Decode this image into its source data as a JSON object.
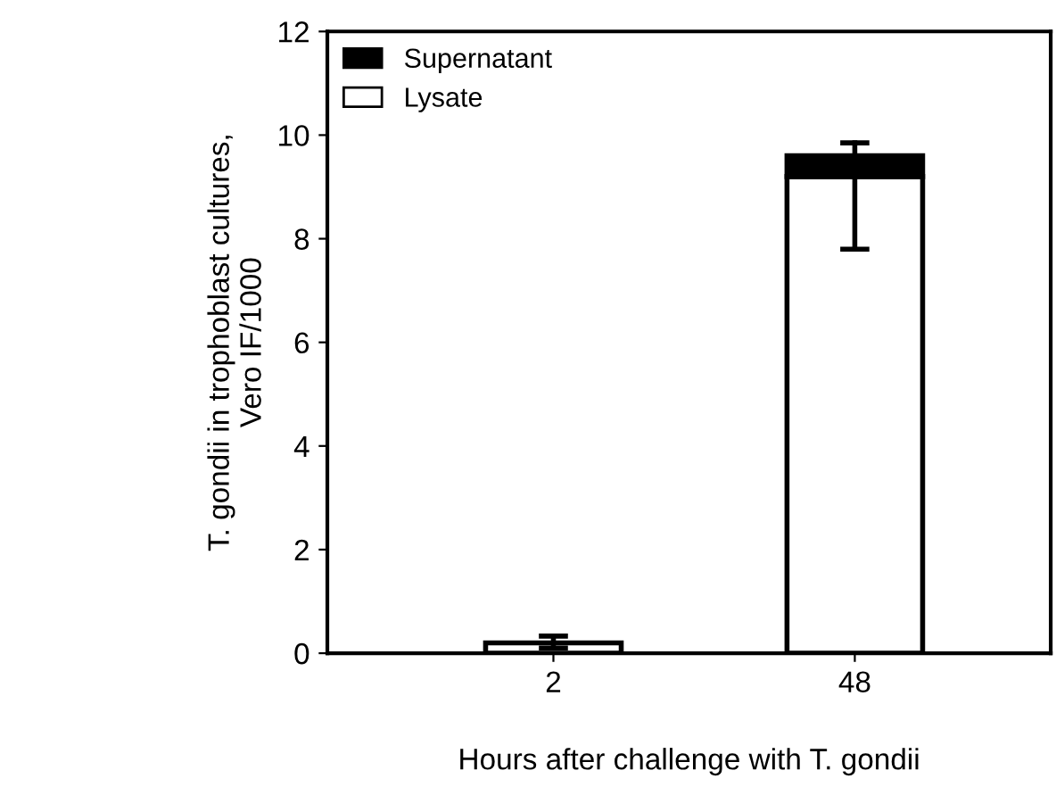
{
  "chart_data": {
    "type": "bar",
    "stacked": true,
    "xlabel": "Hours after challenge with T. gondii",
    "ylabel": "T. gondii in trophoblast cultures,\nVero IF/1000",
    "categories": [
      "2",
      "48"
    ],
    "series": [
      {
        "name": "Lysate",
        "color": "#ffffff",
        "values": [
          0.2,
          9.2
        ],
        "errors": [
          [
            0.1,
            0.33
          ],
          null
        ]
      },
      {
        "name": "Supernatant",
        "color": "#000000",
        "values": [
          null,
          0.4
        ],
        "errors": [
          null,
          [
            7.8,
            9.85
          ]
        ]
      }
    ],
    "ylim": [
      0,
      12
    ],
    "yticks": [
      0,
      2,
      4,
      6,
      8,
      10,
      12
    ],
    "legend": "top left",
    "grid": false
  }
}
